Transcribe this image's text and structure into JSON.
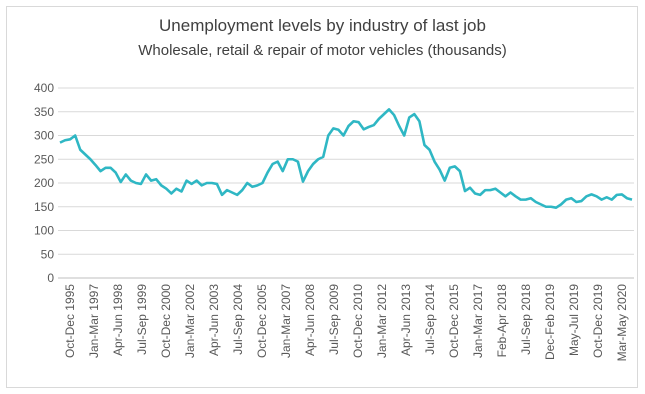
{
  "chart_data": {
    "type": "line",
    "title": "Unemployment  levels by industry  of last job",
    "subtitle": "Wholesale, retail & repair of motor vehicles (thousands)",
    "ylim": [
      0,
      400
    ],
    "y_ticks": [
      0,
      50,
      100,
      150,
      200,
      250,
      300,
      350,
      400
    ],
    "grid": true,
    "x_tick_labels": [
      "Oct-Dec 1995",
      "Jan-Mar 1997",
      "Apr-Jun 1998",
      "Jul-Sep 1999",
      "Oct-Dec 2000",
      "Jan-Mar 2002",
      "Apr-Jun 2003",
      "Jul-Sep 2004",
      "Oct-Dec 2005",
      "Jan-Mar 2007",
      "Apr-Jun 2008",
      "Jul-Sep 2009",
      "Oct-Dec 2010",
      "Jan-Mar 2012",
      "Apr-Jun 2013",
      "Jul-Sep 2014",
      "Oct-Dec 2015",
      "Jan-Mar 2017",
      "Feb-Apr 2018",
      "Jul-Sep 2018",
      "Dec-Feb 2019",
      "May-Jul 2019",
      "Oct-Dec 2019",
      "Mar-May 2020"
    ],
    "series": [
      {
        "color": "#2fb7c4",
        "values": [
          285,
          290,
          292,
          300,
          270,
          260,
          250,
          238,
          225,
          232,
          232,
          222,
          202,
          218,
          205,
          200,
          198,
          218,
          205,
          208,
          195,
          188,
          178,
          188,
          182,
          205,
          198,
          205,
          195,
          200,
          200,
          198,
          175,
          185,
          180,
          175,
          185,
          200,
          192,
          195,
          200,
          222,
          240,
          245,
          225,
          250,
          250,
          245,
          203,
          225,
          240,
          250,
          255,
          300,
          315,
          312,
          300,
          320,
          330,
          328,
          313,
          318,
          322,
          335,
          345,
          355,
          343,
          320,
          300,
          338,
          345,
          330,
          280,
          270,
          245,
          228,
          205,
          232,
          235,
          225,
          183,
          190,
          178,
          175,
          185,
          185,
          188,
          180,
          172,
          180,
          172,
          165,
          165,
          168,
          160,
          155,
          150,
          150,
          148,
          155,
          165,
          168,
          160,
          162,
          172,
          176,
          172,
          165,
          170,
          165,
          175,
          176,
          168,
          165
        ]
      }
    ]
  }
}
